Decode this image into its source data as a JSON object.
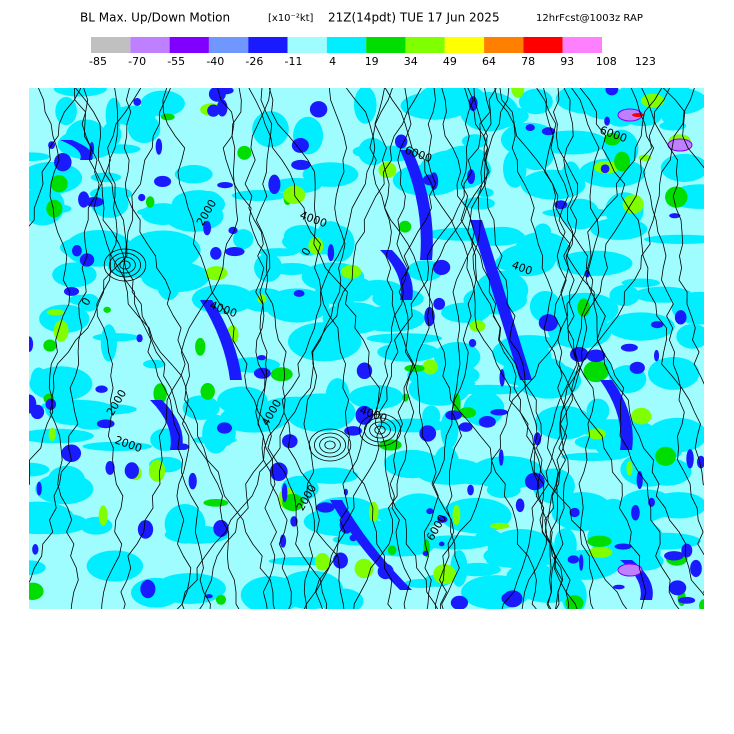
{
  "header": {
    "title": "BL Max. Up/Down Motion",
    "units": "[x10⁻²kt]",
    "valid": "21Z(14pdt) TUE 17 Jun 2025",
    "forecast": "12hrFcst@1003z RAP"
  },
  "legend": {
    "colors": [
      "#c0c0c0",
      "#bf80ff",
      "#8000ff",
      "#6f97ff",
      "#1a1aff",
      "#9ffcff",
      "#00eeff",
      "#00dd00",
      "#80ff00",
      "#ffff00",
      "#ff8000",
      "#ff0000",
      "#ff80ff"
    ],
    "ticks": [
      -85,
      -70,
      -55,
      -40,
      -26,
      -11,
      4,
      19,
      34,
      49,
      64,
      78,
      93,
      108,
      123
    ]
  },
  "map": {
    "contour_labels": [
      "4000",
      "2000",
      "6000",
      "4000",
      "2000",
      "0",
      "4000",
      "6000",
      "4000",
      "2000",
      "6000",
      "0",
      "400",
      "2000"
    ]
  }
}
